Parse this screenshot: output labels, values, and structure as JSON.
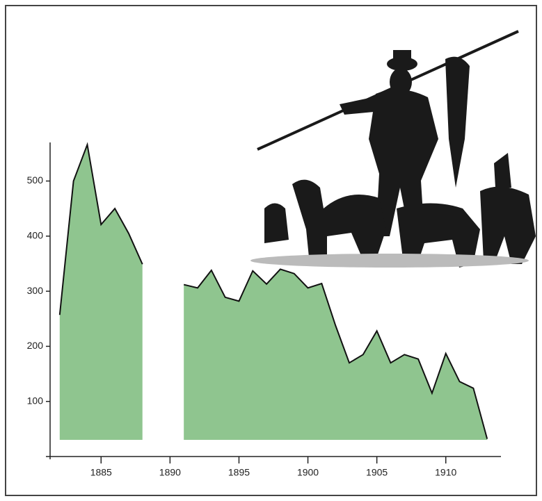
{
  "chart_data": {
    "type": "area",
    "x": [
      1882,
      1883,
      1884,
      1885,
      1886,
      1887,
      1888,
      1889,
      1890,
      1891,
      1892,
      1893,
      1894,
      1895,
      1896,
      1897,
      1898,
      1899,
      1900,
      1901,
      1902,
      1903,
      1904,
      1905,
      1906,
      1907,
      1908,
      1909,
      1910,
      1911,
      1912,
      1913
    ],
    "values": [
      257,
      500,
      566,
      421,
      450,
      405,
      349,
      null,
      null,
      312,
      306,
      338,
      289,
      282,
      337,
      313,
      340,
      332,
      306,
      314,
      238,
      170,
      185,
      228,
      170,
      185,
      177,
      115,
      187,
      136,
      124,
      32
    ],
    "color": "#8fc58f",
    "xlim": [
      1881,
      1914
    ],
    "xticks": [
      1885,
      1890,
      1895,
      1900,
      1905,
      1910
    ],
    "ylim": [
      0,
      570
    ],
    "yticks": [
      100,
      200,
      300,
      400,
      500
    ]
  }
}
